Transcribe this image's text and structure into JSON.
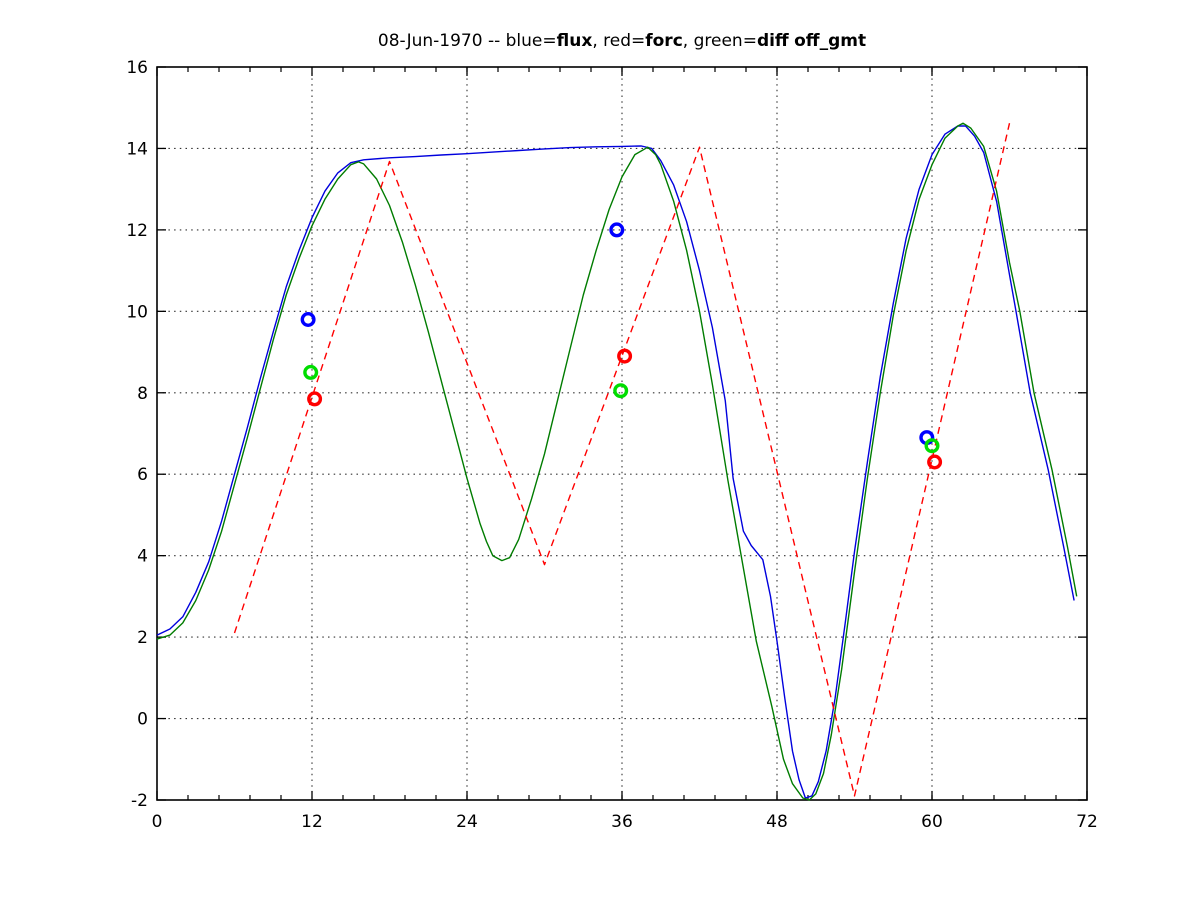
{
  "figure": {
    "background": "#ffffff"
  },
  "title": {
    "full": "08-Jun-1970 -- blue=flux, red=forc, green=diff off_gmt",
    "segments": [
      {
        "text": "08-Jun-1970 -- blue=",
        "bold": false
      },
      {
        "text": "flux",
        "bold": true
      },
      {
        "text": ", red=",
        "bold": false
      },
      {
        "text": "forc",
        "bold": true
      },
      {
        "text": ", green=",
        "bold": false
      },
      {
        "text": "diff",
        "bold": true
      },
      {
        "text": " ",
        "bold": false
      },
      {
        "text": "off_gmt",
        "bold": true
      }
    ]
  },
  "chart_data": {
    "type": "line",
    "title": "08-Jun-1970 -- blue=flux, red=forc, green=diff off_gmt",
    "xlabel": "",
    "ylabel": "",
    "xlim": [
      0,
      72
    ],
    "ylim": [
      -2,
      16
    ],
    "x_ticks": [
      0,
      12,
      24,
      36,
      48,
      60,
      72
    ],
    "x_tick_labels": [
      "0",
      "12",
      "24",
      "36",
      "48",
      "60",
      "72"
    ],
    "y_ticks": [
      -2,
      0,
      2,
      4,
      6,
      8,
      10,
      12,
      14,
      16
    ],
    "y_tick_labels": [
      "-2",
      "0",
      "2",
      "4",
      "6",
      "8",
      "10",
      "12",
      "14",
      "16"
    ],
    "x_minor_tick_step": 2.4,
    "grid": {
      "style": "dotted",
      "color": "#333333",
      "at_major_ticks": true
    },
    "legend_position": "in-title",
    "series": [
      {
        "name": "flux",
        "color": "#0000dd",
        "line_style": "solid",
        "dash": null,
        "points": [
          [
            0,
            2.05
          ],
          [
            1,
            2.2
          ],
          [
            2,
            2.5
          ],
          [
            3,
            3.1
          ],
          [
            4,
            3.85
          ],
          [
            5,
            4.85
          ],
          [
            6,
            6.0
          ],
          [
            7,
            7.15
          ],
          [
            8,
            8.35
          ],
          [
            9,
            9.5
          ],
          [
            10,
            10.6
          ],
          [
            11,
            11.5
          ],
          [
            12,
            12.3
          ],
          [
            13,
            12.95
          ],
          [
            14,
            13.4
          ],
          [
            15,
            13.65
          ],
          [
            16,
            13.72
          ],
          [
            18,
            13.77
          ],
          [
            20,
            13.8
          ],
          [
            22,
            13.84
          ],
          [
            24,
            13.87
          ],
          [
            26,
            13.91
          ],
          [
            28,
            13.95
          ],
          [
            30,
            13.99
          ],
          [
            32,
            14.02
          ],
          [
            34,
            14.04
          ],
          [
            36,
            14.05
          ],
          [
            37.5,
            14.06
          ],
          [
            38.3,
            14.0
          ],
          [
            39,
            13.7
          ],
          [
            40,
            13.1
          ],
          [
            41,
            12.2
          ],
          [
            42,
            11.0
          ],
          [
            43,
            9.6
          ],
          [
            44,
            7.8
          ],
          [
            44.6,
            5.9
          ],
          [
            45.4,
            4.6
          ],
          [
            46,
            4.25
          ],
          [
            46.9,
            3.9
          ],
          [
            47.5,
            3.0
          ],
          [
            48,
            1.9
          ],
          [
            48.6,
            0.5
          ],
          [
            49.2,
            -0.8
          ],
          [
            49.7,
            -1.5
          ],
          [
            50.2,
            -1.95
          ],
          [
            50.7,
            -1.9
          ],
          [
            51.2,
            -1.55
          ],
          [
            51.8,
            -0.8
          ],
          [
            52.5,
            0.5
          ],
          [
            53.3,
            2.4
          ],
          [
            54,
            4.1
          ],
          [
            55,
            6.3
          ],
          [
            56,
            8.4
          ],
          [
            57,
            10.2
          ],
          [
            58,
            11.8
          ],
          [
            59,
            13.0
          ],
          [
            60,
            13.85
          ],
          [
            61,
            14.35
          ],
          [
            62,
            14.55
          ],
          [
            62.6,
            14.55
          ],
          [
            63.3,
            14.3
          ],
          [
            64,
            13.9
          ],
          [
            65,
            12.7
          ],
          [
            66,
            10.9
          ],
          [
            66.5,
            10.0
          ],
          [
            67.6,
            8.0
          ],
          [
            69,
            6.1
          ],
          [
            70.2,
            4.2
          ],
          [
            71,
            2.9
          ]
        ]
      },
      {
        "name": "diff",
        "color": "#007c00",
        "line_style": "solid",
        "dash": null,
        "points": [
          [
            0,
            1.95
          ],
          [
            1,
            2.05
          ],
          [
            2,
            2.35
          ],
          [
            3,
            2.9
          ],
          [
            4,
            3.65
          ],
          [
            5,
            4.6
          ],
          [
            6,
            5.75
          ],
          [
            7,
            6.9
          ],
          [
            8,
            8.1
          ],
          [
            9,
            9.3
          ],
          [
            10,
            10.4
          ],
          [
            11,
            11.3
          ],
          [
            12,
            12.1
          ],
          [
            13,
            12.75
          ],
          [
            14,
            13.25
          ],
          [
            15,
            13.6
          ],
          [
            15.6,
            13.67
          ],
          [
            16,
            13.62
          ],
          [
            17,
            13.25
          ],
          [
            18,
            12.6
          ],
          [
            19,
            11.7
          ],
          [
            20,
            10.65
          ],
          [
            21,
            9.5
          ],
          [
            22,
            8.3
          ],
          [
            23,
            7.1
          ],
          [
            24,
            5.9
          ],
          [
            25,
            4.8
          ],
          [
            25.5,
            4.35
          ],
          [
            26,
            4.0
          ],
          [
            26.7,
            3.88
          ],
          [
            27.3,
            3.95
          ],
          [
            28,
            4.4
          ],
          [
            29,
            5.4
          ],
          [
            30,
            6.5
          ],
          [
            31,
            7.8
          ],
          [
            32,
            9.1
          ],
          [
            33,
            10.4
          ],
          [
            34,
            11.5
          ],
          [
            35,
            12.5
          ],
          [
            36,
            13.3
          ],
          [
            37,
            13.85
          ],
          [
            38,
            14.03
          ],
          [
            38.6,
            13.85
          ],
          [
            39,
            13.6
          ],
          [
            40,
            12.7
          ],
          [
            41,
            11.5
          ],
          [
            42,
            10.0
          ],
          [
            43,
            8.2
          ],
          [
            44.2,
            5.85
          ],
          [
            45,
            4.4
          ],
          [
            46.4,
            1.9
          ],
          [
            47.6,
            0.3
          ],
          [
            48.5,
            -1.0
          ],
          [
            49.2,
            -1.6
          ],
          [
            50,
            -1.95
          ],
          [
            50.5,
            -2.0
          ],
          [
            51,
            -1.85
          ],
          [
            51.6,
            -1.35
          ],
          [
            52.2,
            -0.4
          ],
          [
            53,
            1.2
          ],
          [
            54,
            3.6
          ],
          [
            55,
            5.9
          ],
          [
            56,
            8.0
          ],
          [
            57,
            9.9
          ],
          [
            58,
            11.5
          ],
          [
            59,
            12.75
          ],
          [
            60,
            13.6
          ],
          [
            61,
            14.25
          ],
          [
            62,
            14.55
          ],
          [
            62.4,
            14.62
          ],
          [
            63,
            14.5
          ],
          [
            64,
            14.05
          ],
          [
            65,
            12.95
          ],
          [
            66,
            11.2
          ],
          [
            66.8,
            10.0
          ],
          [
            67.9,
            8.0
          ],
          [
            69.3,
            6.1
          ],
          [
            70.5,
            4.2
          ],
          [
            71.2,
            3.0
          ]
        ]
      },
      {
        "name": "forc",
        "color": "#ff0000",
        "line_style": "dashed",
        "dash": [
          7,
          5
        ],
        "points": [
          [
            6,
            2.1
          ],
          [
            18,
            13.68
          ],
          [
            30,
            3.78
          ],
          [
            42,
            14.03
          ],
          [
            54,
            -1.9
          ],
          [
            66,
            14.62
          ]
        ]
      }
    ],
    "markers": [
      {
        "name": "flux-obs",
        "color": "#0000ff",
        "shape": "open-circle",
        "points": [
          [
            11.7,
            9.8
          ],
          [
            35.6,
            12.0
          ],
          [
            59.6,
            6.9
          ]
        ]
      },
      {
        "name": "diff-obs",
        "color": "#00dd00",
        "shape": "open-circle",
        "points": [
          [
            11.9,
            8.5
          ],
          [
            35.9,
            8.05
          ],
          [
            60.0,
            6.7
          ]
        ]
      },
      {
        "name": "forc-obs",
        "color": "#ff0000",
        "shape": "open-circle",
        "points": [
          [
            12.2,
            7.85
          ],
          [
            36.2,
            8.9
          ],
          [
            60.2,
            6.3
          ]
        ]
      }
    ]
  }
}
